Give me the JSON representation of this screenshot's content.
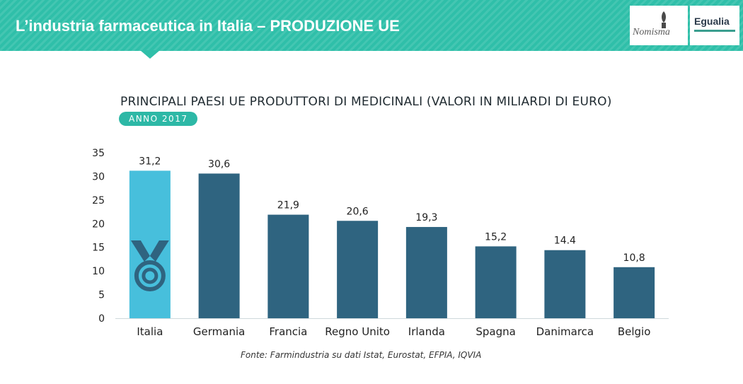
{
  "header": {
    "title": "L’industria farmaceutica in Italia – PRODUZIONE UE",
    "logos": [
      {
        "name": "Nomisma",
        "icon": "nomisma-logo"
      },
      {
        "name": "Egualia",
        "icon": "egualia-logo"
      }
    ]
  },
  "colors": {
    "header_bg": "#2fbfa9",
    "badge_bg": "#2db8a6",
    "highlight_bar": "#47bfdc",
    "bar": "#2f6480",
    "medal_icon": "#2f6480"
  },
  "chart_data": {
    "type": "bar",
    "title": "PRINCIPALI PAESI UE PRODUTTORI DI MEDICINALI (VALORI IN MILIARDI DI EURO)",
    "subtitle": "ANNO 2017",
    "categories": [
      "Italia",
      "Germania",
      "Francia",
      "Regno Unito",
      "Irlanda",
      "Spagna",
      "Danimarca",
      "Belgio"
    ],
    "values": [
      31.2,
      30.6,
      21.9,
      20.6,
      19.3,
      15.2,
      14.4,
      10.8
    ],
    "value_labels": [
      "31,2",
      "30,6",
      "21,9",
      "20,6",
      "19,3",
      "15,2",
      "14.4",
      "10,8"
    ],
    "highlight_index": 0,
    "highlight_icon": "medal-icon",
    "ylim": [
      0,
      35
    ],
    "yticks": [
      0,
      5,
      10,
      15,
      20,
      25,
      30,
      35
    ],
    "ytick_labels": [
      "0",
      "5",
      "10",
      "15",
      "20",
      "25",
      "30",
      "35"
    ],
    "xlabel": "",
    "ylabel": "",
    "grid": false,
    "legend": "none"
  },
  "source": "Fonte: Farmindustria su dati Istat, Eurostat, EFPIA, IQVIA"
}
